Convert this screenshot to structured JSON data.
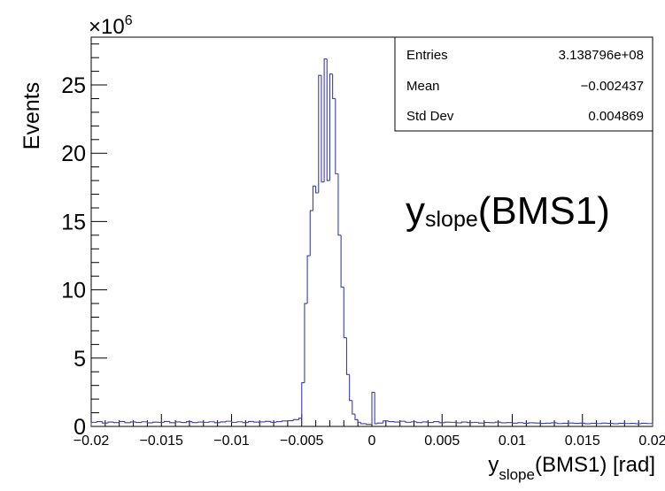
{
  "chart_data": {
    "type": "histogram",
    "ylabel": "Events",
    "xlabel": {
      "main": "y",
      "sub": "slope",
      "rest": "(BMS1) [rad]"
    },
    "y_multiplier": {
      "base": "×10",
      "exp": "6"
    },
    "annotation": {
      "main": "y",
      "sub": "slope",
      "rest": "(BMS1)"
    },
    "xlim": [
      -0.02,
      0.02
    ],
    "ylim": [
      0,
      28.5
    ],
    "x_ticks": [
      -0.02,
      -0.015,
      -0.01,
      -0.005,
      0,
      0.005,
      0.01,
      0.015,
      0.02
    ],
    "x_tick_labels": [
      "−0.02",
      "−0.015",
      "−0.01",
      "−0.005",
      "0",
      "0.005",
      "0.01",
      "0.015",
      "0.02"
    ],
    "y_ticks": [
      0,
      5,
      10,
      15,
      20,
      25
    ],
    "y_tick_labels": [
      "0",
      "5",
      "10",
      "15",
      "20",
      "25"
    ],
    "color": "#3b3fa8",
    "bins": [
      {
        "x0": -0.02,
        "x1": -0.0196,
        "y": 0.3
      },
      {
        "x0": -0.0196,
        "x1": -0.0192,
        "y": 0.35
      },
      {
        "x0": -0.0192,
        "x1": -0.0188,
        "y": 0.25
      },
      {
        "x0": -0.0188,
        "x1": -0.0184,
        "y": 0.32
      },
      {
        "x0": -0.0184,
        "x1": -0.018,
        "y": 0.28
      },
      {
        "x0": -0.018,
        "x1": -0.0176,
        "y": 0.36
      },
      {
        "x0": -0.0176,
        "x1": -0.0172,
        "y": 0.27
      },
      {
        "x0": -0.0172,
        "x1": -0.0168,
        "y": 0.33
      },
      {
        "x0": -0.0168,
        "x1": -0.0164,
        "y": 0.29
      },
      {
        "x0": -0.0164,
        "x1": -0.016,
        "y": 0.34
      },
      {
        "x0": -0.016,
        "x1": -0.0156,
        "y": 0.26
      },
      {
        "x0": -0.0156,
        "x1": -0.0152,
        "y": 0.31
      },
      {
        "x0": -0.0152,
        "x1": -0.0148,
        "y": 0.3
      },
      {
        "x0": -0.0148,
        "x1": -0.0144,
        "y": 0.36
      },
      {
        "x0": -0.0144,
        "x1": -0.014,
        "y": 0.27
      },
      {
        "x0": -0.014,
        "x1": -0.0136,
        "y": 0.33
      },
      {
        "x0": -0.0136,
        "x1": -0.0132,
        "y": 0.29
      },
      {
        "x0": -0.0132,
        "x1": -0.0128,
        "y": 0.35
      },
      {
        "x0": -0.0128,
        "x1": -0.0124,
        "y": 0.28
      },
      {
        "x0": -0.0124,
        "x1": -0.012,
        "y": 0.32
      },
      {
        "x0": -0.012,
        "x1": -0.0116,
        "y": 0.3
      },
      {
        "x0": -0.0116,
        "x1": -0.0112,
        "y": 0.34
      },
      {
        "x0": -0.0112,
        "x1": -0.0108,
        "y": 0.27
      },
      {
        "x0": -0.0108,
        "x1": -0.0104,
        "y": 0.33
      },
      {
        "x0": -0.0104,
        "x1": -0.01,
        "y": 0.38
      },
      {
        "x0": -0.01,
        "x1": -0.0096,
        "y": 0.3
      },
      {
        "x0": -0.0096,
        "x1": -0.0092,
        "y": 0.34
      },
      {
        "x0": -0.0092,
        "x1": -0.0088,
        "y": 0.28
      },
      {
        "x0": -0.0088,
        "x1": -0.0084,
        "y": 0.36
      },
      {
        "x0": -0.0084,
        "x1": -0.008,
        "y": 0.31
      },
      {
        "x0": -0.008,
        "x1": -0.0076,
        "y": 0.33
      },
      {
        "x0": -0.0076,
        "x1": -0.0072,
        "y": 0.37
      },
      {
        "x0": -0.0072,
        "x1": -0.0068,
        "y": 0.3
      },
      {
        "x0": -0.0068,
        "x1": -0.0064,
        "y": 0.35
      },
      {
        "x0": -0.0064,
        "x1": -0.006,
        "y": 0.4
      },
      {
        "x0": -0.006,
        "x1": -0.0056,
        "y": 0.42
      },
      {
        "x0": -0.0056,
        "x1": -0.0052,
        "y": 0.5
      },
      {
        "x0": -0.0052,
        "x1": -0.005,
        "y": 0.6
      },
      {
        "x0": -0.005,
        "x1": -0.0048,
        "y": 3.2
      },
      {
        "x0": -0.0048,
        "x1": -0.0046,
        "y": 9.0
      },
      {
        "x0": -0.0046,
        "x1": -0.0044,
        "y": 12.5
      },
      {
        "x0": -0.0044,
        "x1": -0.0042,
        "y": 15.8
      },
      {
        "x0": -0.0042,
        "x1": -0.004,
        "y": 17.6
      },
      {
        "x0": -0.004,
        "x1": -0.0038,
        "y": 17.1
      },
      {
        "x0": -0.0038,
        "x1": -0.0036,
        "y": 25.7
      },
      {
        "x0": -0.0036,
        "x1": -0.0034,
        "y": 17.9
      },
      {
        "x0": -0.0034,
        "x1": -0.0032,
        "y": 26.9
      },
      {
        "x0": -0.0032,
        "x1": -0.003,
        "y": 18.0
      },
      {
        "x0": -0.003,
        "x1": -0.0028,
        "y": 25.8
      },
      {
        "x0": -0.0028,
        "x1": -0.0026,
        "y": 24.0
      },
      {
        "x0": -0.0026,
        "x1": -0.0024,
        "y": 18.5
      },
      {
        "x0": -0.0024,
        "x1": -0.0022,
        "y": 14.0
      },
      {
        "x0": -0.0022,
        "x1": -0.002,
        "y": 10.2
      },
      {
        "x0": -0.002,
        "x1": -0.0018,
        "y": 6.5
      },
      {
        "x0": -0.0018,
        "x1": -0.0016,
        "y": 3.8
      },
      {
        "x0": -0.0016,
        "x1": -0.0014,
        "y": 1.9
      },
      {
        "x0": -0.0014,
        "x1": -0.0012,
        "y": 0.9
      },
      {
        "x0": -0.0012,
        "x1": -0.001,
        "y": 0.5
      },
      {
        "x0": -0.001,
        "x1": -0.0008,
        "y": 0.3
      },
      {
        "x0": -0.0008,
        "x1": -0.0004,
        "y": 0.2
      },
      {
        "x0": -0.0004,
        "x1": 0.0,
        "y": 0.15
      },
      {
        "x0": 0.0,
        "x1": 0.0002,
        "y": 2.5
      },
      {
        "x0": 0.0002,
        "x1": 0.0004,
        "y": 0.2
      },
      {
        "x0": 0.0004,
        "x1": 0.0008,
        "y": 0.25
      },
      {
        "x0": 0.0008,
        "x1": 0.0012,
        "y": 0.4
      },
      {
        "x0": 0.0012,
        "x1": 0.0016,
        "y": 0.35
      },
      {
        "x0": 0.0016,
        "x1": 0.002,
        "y": 0.32
      },
      {
        "x0": 0.002,
        "x1": 0.0024,
        "y": 0.38
      },
      {
        "x0": 0.0024,
        "x1": 0.0028,
        "y": 0.3
      },
      {
        "x0": 0.0028,
        "x1": 0.0032,
        "y": 0.34
      },
      {
        "x0": 0.0032,
        "x1": 0.0036,
        "y": 0.28
      },
      {
        "x0": 0.0036,
        "x1": 0.004,
        "y": 0.33
      },
      {
        "x0": 0.004,
        "x1": 0.0044,
        "y": 0.29
      },
      {
        "x0": 0.0044,
        "x1": 0.0048,
        "y": 0.35
      },
      {
        "x0": 0.0048,
        "x1": 0.0052,
        "y": 0.27
      },
      {
        "x0": 0.0052,
        "x1": 0.0056,
        "y": 0.31
      },
      {
        "x0": 0.0056,
        "x1": 0.006,
        "y": 0.3
      },
      {
        "x0": 0.006,
        "x1": 0.0064,
        "y": 0.26
      },
      {
        "x0": 0.0064,
        "x1": 0.0068,
        "y": 0.32
      },
      {
        "x0": 0.0068,
        "x1": 0.0072,
        "y": 0.28
      },
      {
        "x0": 0.0072,
        "x1": 0.0076,
        "y": 0.3
      },
      {
        "x0": 0.0076,
        "x1": 0.008,
        "y": 0.25
      },
      {
        "x0": 0.008,
        "x1": 0.0084,
        "y": 0.29
      },
      {
        "x0": 0.0084,
        "x1": 0.0088,
        "y": 0.27
      },
      {
        "x0": 0.0088,
        "x1": 0.0092,
        "y": 0.31
      },
      {
        "x0": 0.0092,
        "x1": 0.0096,
        "y": 0.26
      },
      {
        "x0": 0.0096,
        "x1": 0.01,
        "y": 0.28
      },
      {
        "x0": 0.01,
        "x1": 0.0104,
        "y": 0.24
      },
      {
        "x0": 0.0104,
        "x1": 0.0108,
        "y": 0.27
      },
      {
        "x0": 0.0108,
        "x1": 0.0112,
        "y": 0.23
      },
      {
        "x0": 0.0112,
        "x1": 0.0116,
        "y": 0.26
      },
      {
        "x0": 0.0116,
        "x1": 0.012,
        "y": 0.25
      },
      {
        "x0": 0.012,
        "x1": 0.0124,
        "y": 0.22
      },
      {
        "x0": 0.0124,
        "x1": 0.0128,
        "y": 0.24
      },
      {
        "x0": 0.0128,
        "x1": 0.0132,
        "y": 0.26
      },
      {
        "x0": 0.0132,
        "x1": 0.0136,
        "y": 0.21
      },
      {
        "x0": 0.0136,
        "x1": 0.014,
        "y": 0.23
      },
      {
        "x0": 0.014,
        "x1": 0.0144,
        "y": 0.25
      },
      {
        "x0": 0.0144,
        "x1": 0.0148,
        "y": 0.22
      },
      {
        "x0": 0.0148,
        "x1": 0.0152,
        "y": 0.24
      },
      {
        "x0": 0.0152,
        "x1": 0.0156,
        "y": 0.2
      },
      {
        "x0": 0.0156,
        "x1": 0.016,
        "y": 0.23
      },
      {
        "x0": 0.016,
        "x1": 0.0164,
        "y": 0.21
      },
      {
        "x0": 0.0164,
        "x1": 0.0168,
        "y": 0.24
      },
      {
        "x0": 0.0168,
        "x1": 0.0172,
        "y": 0.22
      },
      {
        "x0": 0.0172,
        "x1": 0.0176,
        "y": 0.2
      },
      {
        "x0": 0.0176,
        "x1": 0.018,
        "y": 0.23
      },
      {
        "x0": 0.018,
        "x1": 0.0184,
        "y": 0.21
      },
      {
        "x0": 0.0184,
        "x1": 0.0188,
        "y": 0.22
      },
      {
        "x0": 0.0188,
        "x1": 0.0192,
        "y": 0.2
      },
      {
        "x0": 0.0192,
        "x1": 0.0196,
        "y": 0.23
      },
      {
        "x0": 0.0196,
        "x1": 0.02,
        "y": 0.21
      }
    ],
    "stats_box": {
      "rows": [
        {
          "label": "Entries",
          "value": "3.138796e+08"
        },
        {
          "label": "Mean",
          "value": "−0.002437"
        },
        {
          "label": "Std Dev",
          "value": "0.004869"
        }
      ]
    }
  }
}
